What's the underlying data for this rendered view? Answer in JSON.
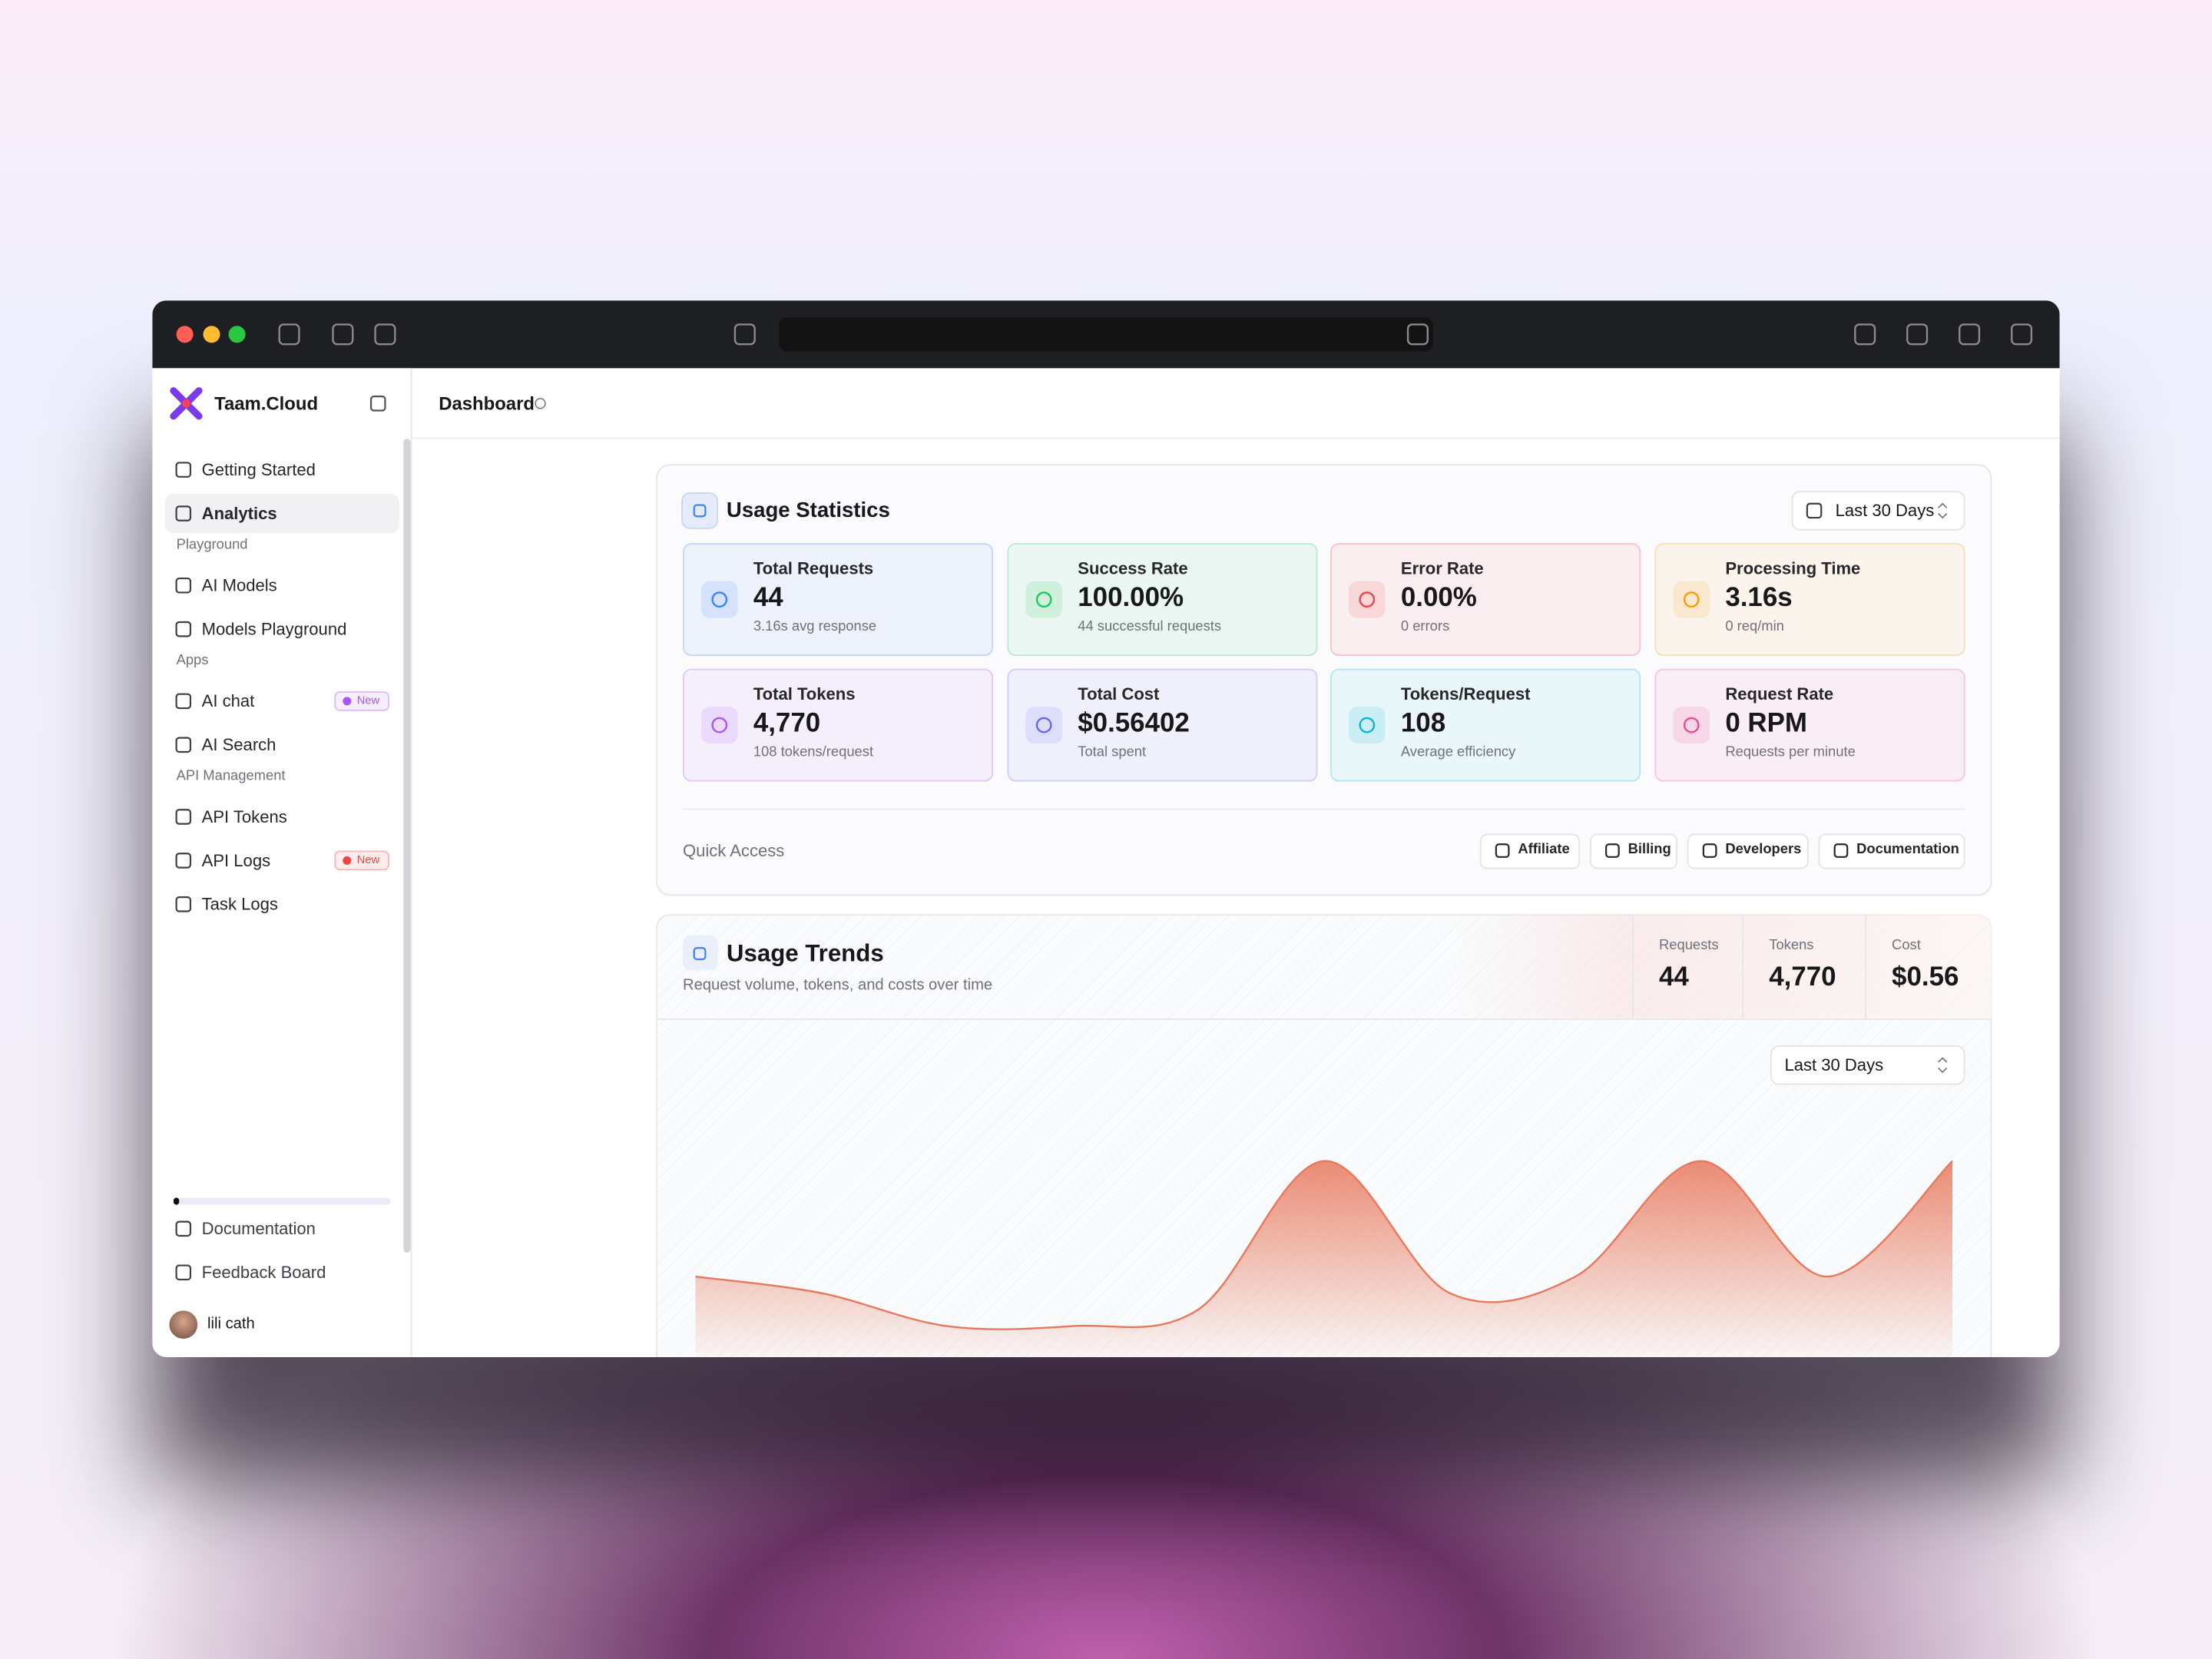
{
  "sidebar": {
    "brand": "Taam.Cloud",
    "groups": [
      {
        "items": [
          {
            "label": "Getting Started"
          },
          {
            "label": "Analytics",
            "active": true
          }
        ]
      },
      {
        "heading": "Playground",
        "items": [
          {
            "label": "AI Models"
          },
          {
            "label": "Models Playground"
          }
        ]
      },
      {
        "heading": "Apps",
        "items": [
          {
            "label": "AI chat",
            "badge": "New",
            "badge_color": "#a855f7"
          },
          {
            "label": "AI Search"
          }
        ]
      },
      {
        "heading": "API Management",
        "items": [
          {
            "label": "API Tokens"
          },
          {
            "label": "API Logs",
            "badge": "New",
            "badge_color": "#ef4444"
          },
          {
            "label": "Task Logs"
          }
        ]
      }
    ],
    "footer": [
      {
        "label": "Documentation"
      },
      {
        "label": "Feedback Board"
      }
    ],
    "user": "lili cath"
  },
  "header": {
    "title": "Dashboard"
  },
  "usage_statistics": {
    "title": "Usage Statistics",
    "range": "Last 30 Days",
    "cards": [
      {
        "label": "Total Requests",
        "value": "44",
        "note": "3.16s avg response",
        "color": "#3b82f6"
      },
      {
        "label": "Success Rate",
        "value": "100.00%",
        "note": "44 successful requests",
        "color": "#22c55e"
      },
      {
        "label": "Error Rate",
        "value": "0.00%",
        "note": "0 errors",
        "color": "#ef4444"
      },
      {
        "label": "Processing Time",
        "value": "3.16s",
        "note": "0 req/min",
        "color": "#f59e0b"
      },
      {
        "label": "Total Tokens",
        "value": "4,770",
        "note": "108 tokens/request",
        "color": "#a855f7"
      },
      {
        "label": "Total Cost",
        "value": "$0.56402",
        "note": "Total spent",
        "color": "#6366f1"
      },
      {
        "label": "Tokens/Request",
        "value": "108",
        "note": "Average efficiency",
        "color": "#06b6d4"
      },
      {
        "label": "Request Rate",
        "value": "0 RPM",
        "note": "Requests per minute",
        "color": "#ec4899"
      }
    ],
    "quick_access": {
      "label": "Quick Access",
      "links": [
        "Affiliate",
        "Billing",
        "Developers",
        "Documentation"
      ]
    }
  },
  "usage_trends": {
    "title": "Usage Trends",
    "subtitle": "Request volume, tokens, and costs over time",
    "stats": [
      {
        "label": "Requests",
        "value": "44"
      },
      {
        "label": "Tokens",
        "value": "4,770"
      },
      {
        "label": "Cost",
        "value": "$0.56"
      }
    ],
    "range": "Last 30 Days",
    "chart": {
      "type": "area",
      "values": [
        3,
        2,
        0,
        0,
        1,
        10,
        2,
        3,
        10,
        3,
        10
      ],
      "ylim": [
        0,
        10
      ],
      "color": "#e8785c"
    }
  }
}
